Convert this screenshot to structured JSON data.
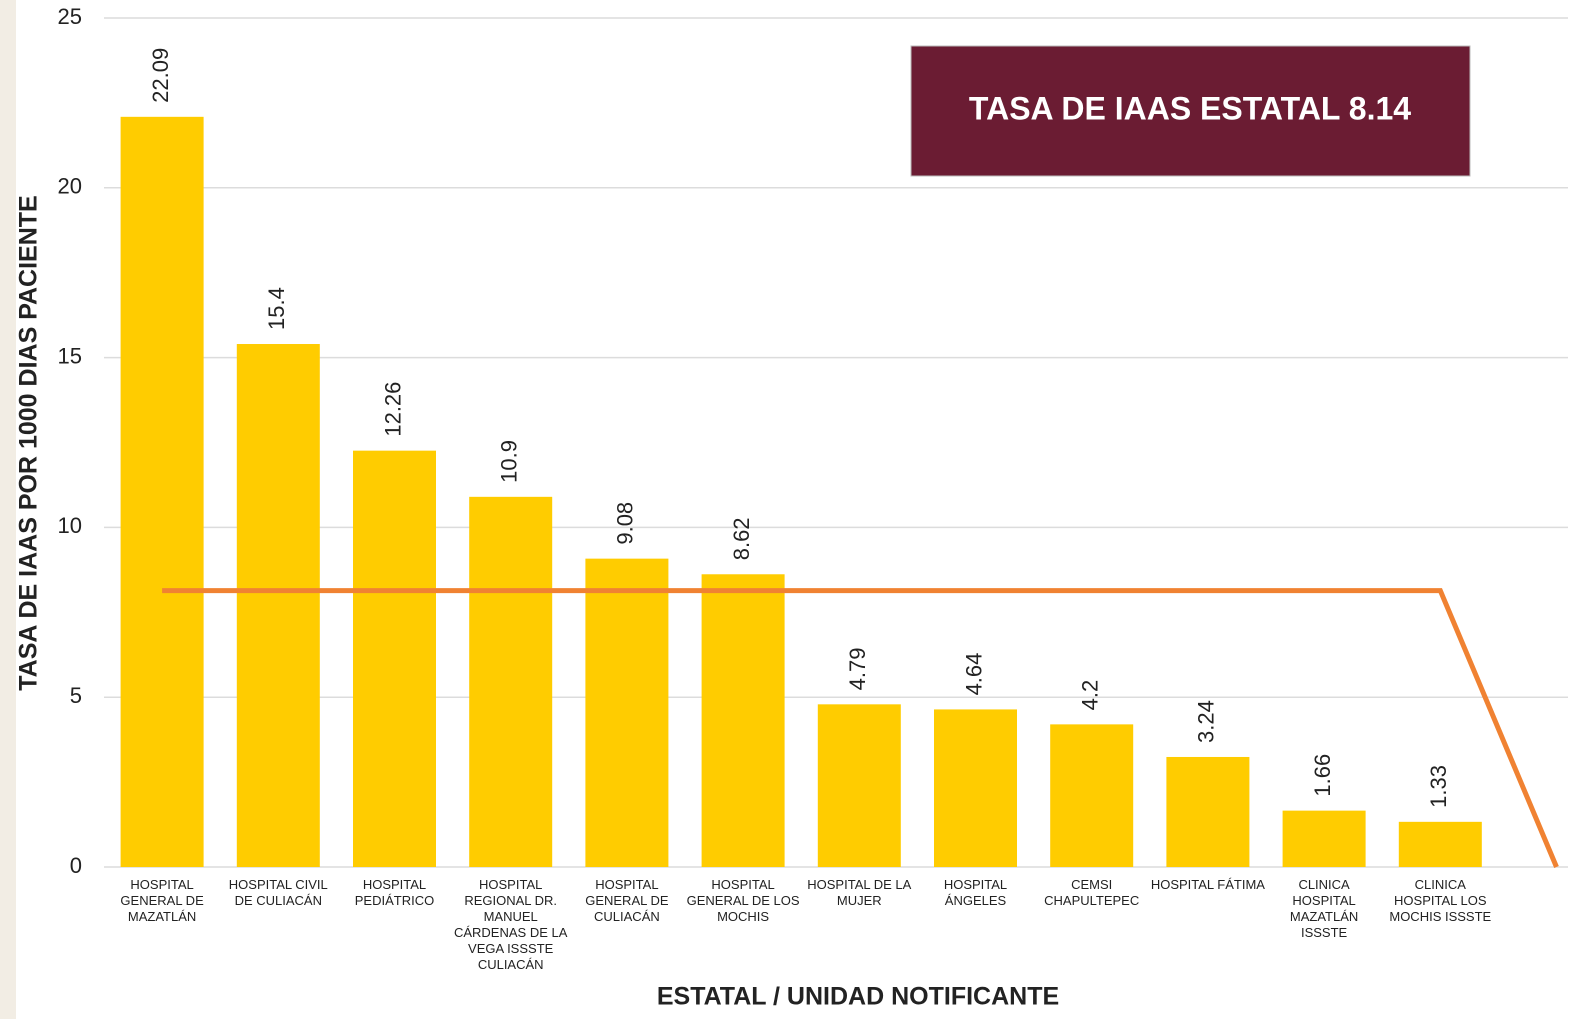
{
  "chart_data": {
    "type": "bar",
    "annotation": "TASA DE IAAS ESTATAL 8.14",
    "x_label": "ESTATAL / UNIDAD NOTIFICANTE",
    "y_label": "TASA DE IAAS POR 1000 DIAS PACIENTE",
    "categories": [
      "HOSPITAL GENERAL DE MAZATLÁN",
      "HOSPITAL CIVIL DE CULIACÁN",
      "HOSPITAL PEDIÁTRICO",
      "HOSPITAL REGIONAL DR. MANUEL CÁRDENAS DE LA VEGA ISSSTE CULIACÁN",
      "HOSPITAL GENERAL DE CULIACÁN",
      "HOSPITAL GENERAL DE LOS MOCHIS",
      "HOSPITAL DE LA MUJER",
      "HOSPITAL ÁNGELES",
      "CEMSI CHAPULTEPEC",
      "HOSPITAL FÁTIMA",
      "CLINICA HOSPITAL MAZATLÁN ISSSTE",
      "CLINICA HOSPITAL LOS MOCHIS ISSSTE",
      null
    ],
    "series": [
      {
        "type": "bar",
        "color": "#ffcc00",
        "values": [
          22.09,
          15.4,
          12.26,
          10.9,
          9.08,
          8.62,
          4.79,
          4.64,
          4.2,
          3.24,
          1.66,
          1.33,
          null
        ]
      },
      {
        "type": "line",
        "color": "#f08232",
        "values": [
          8.14,
          8.14,
          8.14,
          8.14,
          8.14,
          8.14,
          8.14,
          8.14,
          8.14,
          8.14,
          8.14,
          8.14,
          0
        ]
      }
    ],
    "ylim": [
      0,
      25
    ],
    "yticks": [
      0,
      5,
      10,
      15,
      20,
      25
    ],
    "grid": true
  }
}
